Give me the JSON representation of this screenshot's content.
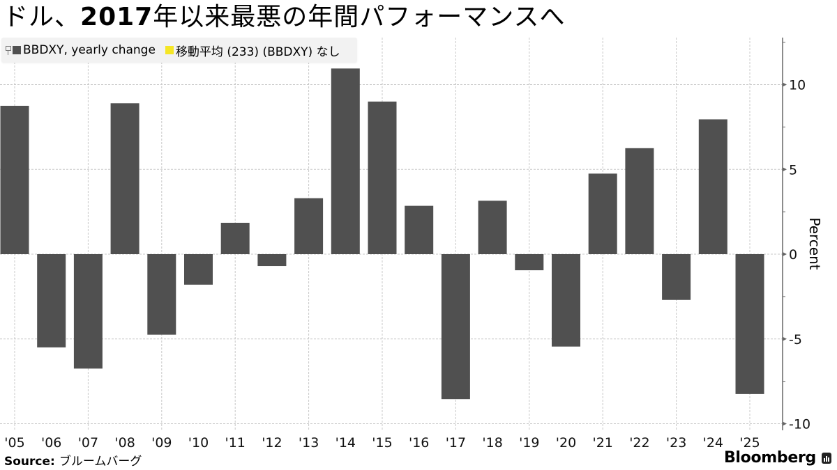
{
  "title": {
    "prefix": "ドル、",
    "bold": "2017",
    "suffix": "年以来最悪の年間パフォーマンスへ"
  },
  "legend": {
    "items": [
      {
        "label": "BBDXY, yearly change",
        "color": "#505050"
      },
      {
        "label": "移動平均 (233) (BBDXY) なし",
        "color": "#f5e625"
      }
    ]
  },
  "source": {
    "label": "Source:",
    "value": "ブルームバーグ"
  },
  "brand": "Bloomberg",
  "colors": {
    "bar": "#505050",
    "grid": "#c8c8c8",
    "axis": "#666666",
    "legend_bg": "#f2f2f2"
  },
  "chart_data": {
    "type": "bar",
    "title": "ドル、2017年以来最悪の年間パフォーマンスへ",
    "xlabel": "",
    "ylabel": "Percent",
    "categories": [
      "'05",
      "'06",
      "'07",
      "'08",
      "'09",
      "'10",
      "'11",
      "'12",
      "'13",
      "'14",
      "'15",
      "'16",
      "'17",
      "'18",
      "'19",
      "'20",
      "'21",
      "'22",
      "'23",
      "'24",
      "'25"
    ],
    "series": [
      {
        "name": "BBDXY, yearly change",
        "values": [
          8.75,
          -5.5,
          -6.75,
          8.9,
          -4.75,
          -1.8,
          1.85,
          -0.7,
          3.3,
          10.95,
          9.0,
          2.85,
          -8.55,
          3.15,
          -0.95,
          -5.45,
          4.75,
          6.25,
          -2.7,
          7.95,
          -8.25
        ]
      }
    ],
    "yticks": [
      10,
      5,
      0,
      -5,
      -10
    ],
    "ylim": [
      -10.3,
      12.7
    ],
    "grid": true,
    "y_axis_position": "right",
    "legend_position": "top-left"
  }
}
